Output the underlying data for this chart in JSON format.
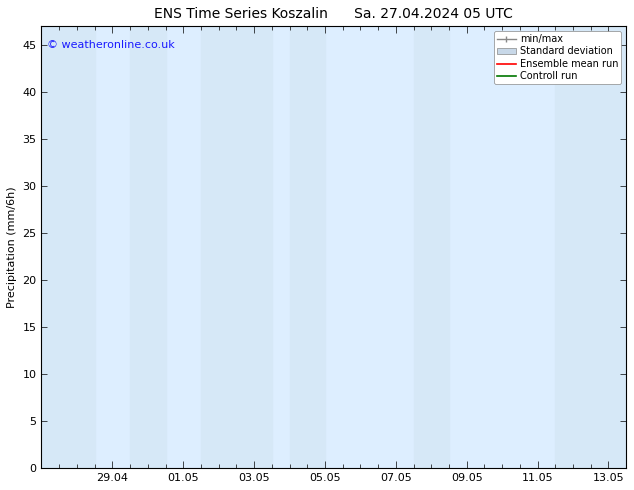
{
  "title_left": "ENS Time Series Koszalin",
  "title_right": "Sa. 27.04.2024 05 UTC",
  "ylabel": "Precipitation (mm/6h)",
  "watermark": "© weatheronline.co.uk",
  "watermark_color": "#1a1aff",
  "xlim_start": 0,
  "xlim_end": 16.5,
  "ylim_min": 0,
  "ylim_max": 47,
  "yticks": [
    0,
    5,
    10,
    15,
    20,
    25,
    30,
    35,
    40,
    45
  ],
  "xtick_labels": [
    "29.04",
    "01.05",
    "03.05",
    "05.05",
    "07.05",
    "09.05",
    "11.05",
    "13.05"
  ],
  "xtick_positions": [
    2,
    4,
    6,
    8,
    10,
    12,
    14,
    16
  ],
  "bg_color": "#ffffff",
  "plot_bg_color": "#ddeeff",
  "shade_color": "#d6e8f7",
  "shade_alpha": 1.0,
  "shade_bands": [
    [
      0.0,
      1.5
    ],
    [
      2.5,
      3.5
    ],
    [
      4.5,
      6.5
    ],
    [
      7.0,
      8.0
    ],
    [
      10.5,
      11.5
    ],
    [
      14.5,
      16.5
    ]
  ],
  "title_fontsize": 10,
  "axis_fontsize": 8,
  "tick_fontsize": 8
}
